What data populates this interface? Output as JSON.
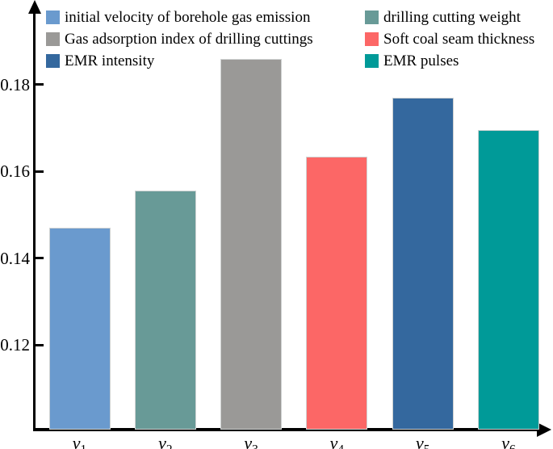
{
  "chart_data": {
    "type": "bar",
    "title": "",
    "xlabel": "",
    "ylabel": "",
    "categories": [
      "v1",
      "v2",
      "v3",
      "v4",
      "v5",
      "v6"
    ],
    "x_tick_display": [
      {
        "base": "v",
        "sub": "1"
      },
      {
        "base": "v",
        "sub": "2"
      },
      {
        "base": "v",
        "sub": "3"
      },
      {
        "base": "v",
        "sub": "4"
      },
      {
        "base": "v",
        "sub": "5"
      },
      {
        "base": "v",
        "sub": "6"
      }
    ],
    "series": [
      {
        "name": "initial velocity of borehole gas emission",
        "category": "v1",
        "value": 0.147,
        "color": "#6a9ace"
      },
      {
        "name": "drilling cutting weight",
        "category": "v2",
        "value": 0.1555,
        "color": "#689a97"
      },
      {
        "name": "Gas adsorption index of drilling cuttings",
        "category": "v3",
        "value": 0.186,
        "color": "#9a9997"
      },
      {
        "name": "Soft coal seam thickness",
        "category": "v4",
        "value": 0.1635,
        "color": "#fc6766"
      },
      {
        "name": "EMR intensity",
        "category": "v5",
        "value": 0.177,
        "color": "#34689e"
      },
      {
        "name": "EMR pulses",
        "category": "v6",
        "value": 0.1695,
        "color": "#009a98"
      }
    ],
    "ylim": [
      0.1,
      0.2
    ],
    "yticks": [
      {
        "value": 0.12,
        "label": "0.12"
      },
      {
        "value": 0.14,
        "label": "0.14"
      },
      {
        "value": 0.16,
        "label": "0.16"
      },
      {
        "value": 0.18,
        "label": "0.18"
      }
    ],
    "grid": false,
    "legend_position": "top",
    "legend_columns": [
      {
        "entries": [
          {
            "label": "initial velocity of borehole gas emission",
            "color": "#6a9ace"
          },
          {
            "label": "Gas adsorption index of drilling cuttings",
            "color": "#9a9997"
          },
          {
            "label": "EMR intensity",
            "color": "#34689e"
          }
        ]
      },
      {
        "entries": [
          {
            "label": "drilling cutting weight",
            "color": "#689a97"
          },
          {
            "label": "Soft coal seam thickness",
            "color": "#fc6766"
          },
          {
            "label": "EMR pulses",
            "color": "#009a98"
          }
        ]
      }
    ]
  }
}
